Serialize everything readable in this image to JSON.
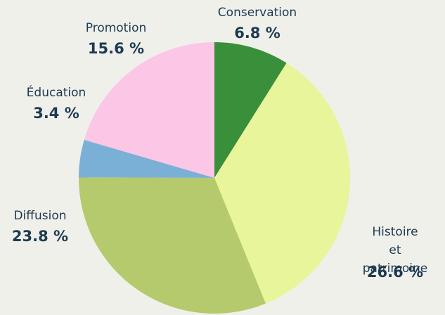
{
  "chart_data": {
    "type": "pie",
    "categories": [
      "Conservation",
      "Histoire\net patrimoine",
      "Diffusion",
      "Éducation",
      "Promotion"
    ],
    "values": [
      6.8,
      26.6,
      23.8,
      3.4,
      15.6
    ],
    "value_labels": [
      "6.8 %",
      "26.6 %",
      "23.8 %",
      "3.4 %",
      "15.6 %"
    ],
    "colors": [
      "#3a8f3a",
      "#e8f59a",
      "#b5ca6c",
      "#7bb0d6",
      "#fcc6e6"
    ]
  }
}
